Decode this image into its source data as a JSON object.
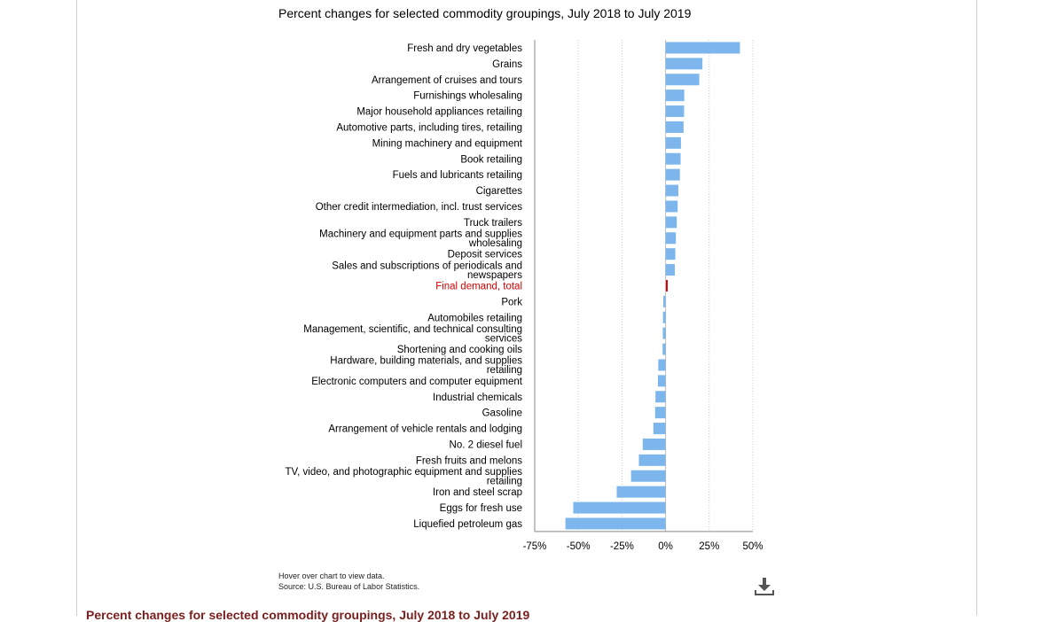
{
  "chart_data": {
    "type": "bar",
    "orientation": "horizontal",
    "title": "Percent changes for selected commodity groupings, July 2018 to July 2019",
    "categories": [
      "Fresh and dry vegetables",
      "Grains",
      "Arrangement of cruises and tours",
      "Furnishings wholesaling",
      "Major household appliances retailing",
      "Automotive parts, including tires, retailing",
      "Mining machinery and equipment",
      "Book retailing",
      "Fuels and lubricants retailing",
      "Cigarettes",
      "Other credit intermediation, incl. trust services",
      "Truck trailers",
      "Machinery and equipment parts and supplies wholesaling",
      "Deposit services",
      "Sales and subscriptions of periodicals and newspapers",
      "Final demand, total",
      "Pork",
      "Automobiles retailing",
      "Management, scientific, and technical consulting services",
      "Shortening and cooking oils",
      "Hardware, building materials, and supplies retailing",
      "Electronic computers and computer equipment",
      "Industrial chemicals",
      "Gasoline",
      "Arrangement of vehicle rentals and lodging",
      "No. 2 diesel fuel",
      "Fresh fruits and melons",
      "TV, video, and photographic equipment and supplies retailing",
      "Iron and steel scrap",
      "Eggs for fresh use",
      "Liquefied petroleum gas"
    ],
    "values": [
      42.6,
      21.1,
      19.3,
      10.7,
      10.6,
      10.3,
      8.8,
      8.6,
      8.2,
      7.3,
      6.9,
      6.4,
      5.9,
      5.6,
      5.3,
      1.2,
      -1.3,
      -1.5,
      -1.6,
      -1.7,
      -4.2,
      -4.4,
      -5.8,
      -6.0,
      -7.0,
      -13.1,
      -15.3,
      -19.8,
      -28.0,
      -52.9,
      -57.4
    ],
    "highlight_category": "Final demand, total",
    "highlight_color": "#d40000",
    "bar_color": "#7db6ec",
    "xlim": [
      -75,
      50
    ],
    "xticks": [
      -75,
      -50,
      -25,
      0,
      25,
      50
    ],
    "xtick_labels": [
      "-75%",
      "-50%",
      "-25%",
      "0%",
      "25%",
      "50%"
    ],
    "grid": "vertical dotted"
  },
  "notes": {
    "hover": "Hover over chart to view data.",
    "source": "Source: U.S. Bureau of Labor Statistics."
  },
  "footer": {
    "link_text": "Percent changes for selected commodity groupings, July 2018 to July 2019"
  },
  "icons": {
    "download": "download-icon"
  }
}
